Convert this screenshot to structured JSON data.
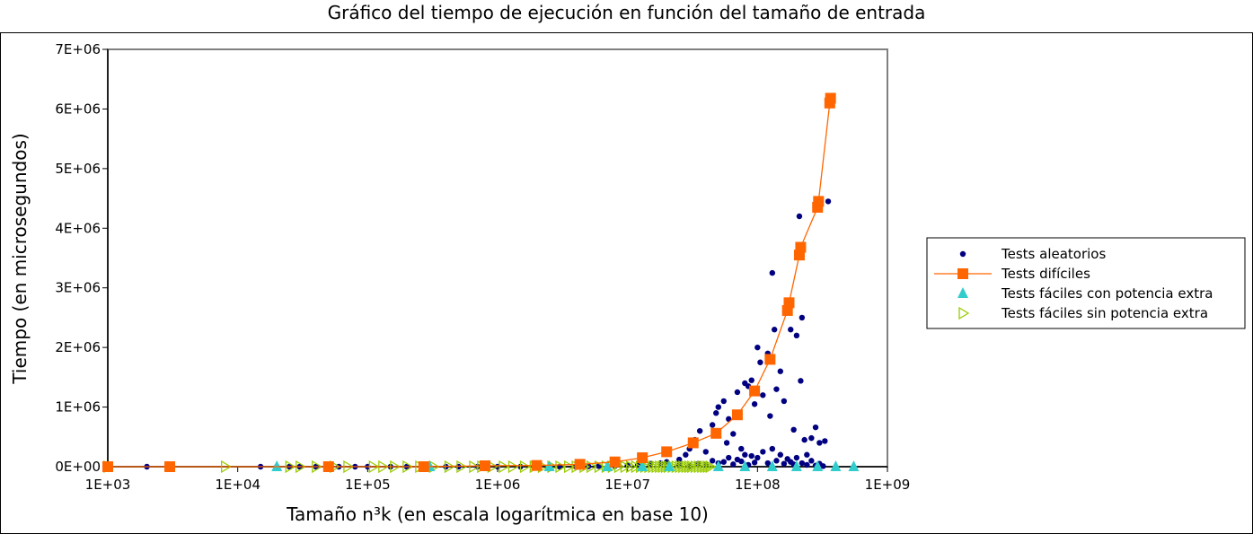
{
  "chart_data": {
    "type": "scatter",
    "title": "Gráfico del tiempo de ejecución en función del tamaño de entrada",
    "xlabel": "Tamaño n³k (en escala logarítmica en base 10)",
    "ylabel": "Tiempo (en microsegundos)",
    "x_scale": "log10",
    "xlim": [
      1000,
      1000000000
    ],
    "ylim": [
      0,
      7000000
    ],
    "x_ticks": [
      "1E+03",
      "1E+04",
      "1E+05",
      "1E+06",
      "1E+07",
      "1E+08",
      "1E+09"
    ],
    "y_ticks": [
      "0E+00",
      "1E+06",
      "2E+06",
      "3E+06",
      "4E+06",
      "5E+06",
      "6E+06",
      "7E+06"
    ],
    "grid": false,
    "legend_position": "right",
    "series": [
      {
        "name": "Tests aleatorios",
        "style": "scatter",
        "marker": "circle",
        "color": "#000080",
        "points": [
          [
            2000,
            0
          ],
          [
            15000,
            0
          ],
          [
            20000,
            0
          ],
          [
            25000,
            0
          ],
          [
            30000,
            0
          ],
          [
            40000,
            0
          ],
          [
            60000,
            0
          ],
          [
            80000,
            0
          ],
          [
            100000,
            0
          ],
          [
            150000,
            0
          ],
          [
            200000,
            0
          ],
          [
            300000,
            0
          ],
          [
            400000,
            0
          ],
          [
            500000,
            0
          ],
          [
            700000,
            0
          ],
          [
            1000000,
            0
          ],
          [
            1500000,
            0
          ],
          [
            2000000,
            0
          ],
          [
            3000000,
            0
          ],
          [
            4000000,
            0
          ],
          [
            5000000,
            5000
          ],
          [
            6000000,
            10000
          ],
          [
            8000000,
            10000
          ],
          [
            10000000,
            20000
          ],
          [
            12000000,
            30000
          ],
          [
            15000000,
            50000
          ],
          [
            18000000,
            60000
          ],
          [
            20000000,
            80000
          ],
          [
            25000000,
            120000
          ],
          [
            28000000,
            200000
          ],
          [
            30000000,
            300000
          ],
          [
            33000000,
            450000
          ],
          [
            36000000,
            600000
          ],
          [
            40000000,
            250000
          ],
          [
            45000000,
            700000
          ],
          [
            48000000,
            900000
          ],
          [
            50000000,
            1000000
          ],
          [
            55000000,
            1100000
          ],
          [
            58000000,
            400000
          ],
          [
            60000000,
            800000
          ],
          [
            65000000,
            550000
          ],
          [
            70000000,
            1250000
          ],
          [
            75000000,
            300000
          ],
          [
            80000000,
            1400000
          ],
          [
            85000000,
            1350000
          ],
          [
            90000000,
            1450000
          ],
          [
            95000000,
            1050000
          ],
          [
            100000000,
            2000000
          ],
          [
            105000000,
            1750000
          ],
          [
            110000000,
            1200000
          ],
          [
            120000000,
            1900000
          ],
          [
            125000000,
            850000
          ],
          [
            130000000,
            3250000
          ],
          [
            135000000,
            2300000
          ],
          [
            140000000,
            1300000
          ],
          [
            150000000,
            1600000
          ],
          [
            160000000,
            1100000
          ],
          [
            180000000,
            2300000
          ],
          [
            190000000,
            620000
          ],
          [
            200000000,
            2200000
          ],
          [
            210000000,
            4200000
          ],
          [
            215000000,
            1440000
          ],
          [
            220000000,
            2500000
          ],
          [
            230000000,
            450000
          ],
          [
            240000000,
            200000
          ],
          [
            260000000,
            480000
          ],
          [
            280000000,
            660000
          ],
          [
            300000000,
            400000
          ],
          [
            330000000,
            430000
          ],
          [
            350000000,
            4450000
          ],
          [
            25000000,
            20000
          ],
          [
            30000000,
            10000
          ],
          [
            35000000,
            50000
          ],
          [
            40000000,
            30000
          ],
          [
            45000000,
            100000
          ],
          [
            50000000,
            60000
          ],
          [
            55000000,
            80000
          ],
          [
            60000000,
            150000
          ],
          [
            65000000,
            40000
          ],
          [
            70000000,
            120000
          ],
          [
            75000000,
            90000
          ],
          [
            80000000,
            200000
          ],
          [
            85000000,
            30000
          ],
          [
            90000000,
            180000
          ],
          [
            95000000,
            70000
          ],
          [
            100000000,
            150000
          ],
          [
            110000000,
            250000
          ],
          [
            120000000,
            60000
          ],
          [
            130000000,
            300000
          ],
          [
            140000000,
            100000
          ],
          [
            150000000,
            200000
          ],
          [
            160000000,
            50000
          ],
          [
            170000000,
            130000
          ],
          [
            180000000,
            80000
          ],
          [
            190000000,
            40000
          ],
          [
            200000000,
            150000
          ],
          [
            220000000,
            60000
          ],
          [
            240000000,
            30000
          ],
          [
            260000000,
            100000
          ],
          [
            280000000,
            20000
          ],
          [
            300000000,
            50000
          ],
          [
            320000000,
            10000
          ]
        ]
      },
      {
        "name": "Tests difíciles",
        "style": "line+marker",
        "marker": "square",
        "color": "#ff6600",
        "points": [
          [
            1000,
            0
          ],
          [
            3000,
            0
          ],
          [
            50000,
            0
          ],
          [
            270000,
            0
          ],
          [
            800000,
            15000
          ],
          [
            2000000,
            20000
          ],
          [
            4300000,
            40000
          ],
          [
            8000000,
            80000
          ],
          [
            13000000,
            150000
          ],
          [
            20000000,
            250000
          ],
          [
            32000000,
            400000
          ],
          [
            48000000,
            560000
          ],
          [
            70000000,
            870000
          ],
          [
            95000000,
            1270000
          ],
          [
            125000000,
            1800000
          ],
          [
            170000000,
            2620000
          ],
          [
            175000000,
            2750000
          ],
          [
            210000000,
            3550000
          ],
          [
            215000000,
            3680000
          ],
          [
            290000000,
            4350000
          ],
          [
            295000000,
            4450000
          ],
          [
            360000000,
            6100000
          ],
          [
            365000000,
            6180000
          ]
        ]
      },
      {
        "name": "Tests fáciles con potencia extra",
        "style": "scatter",
        "marker": "triangle-up",
        "color": "#33cccc",
        "points": [
          [
            20000,
            0
          ],
          [
            300000,
            0
          ],
          [
            2500000,
            0
          ],
          [
            7000000,
            0
          ],
          [
            13000000,
            0
          ],
          [
            21000000,
            0
          ],
          [
            50000000,
            0
          ],
          [
            80000000,
            0
          ],
          [
            130000000,
            0
          ],
          [
            200000000,
            0
          ],
          [
            290000000,
            0
          ],
          [
            400000000,
            0
          ],
          [
            550000000,
            0
          ]
        ]
      },
      {
        "name": "Tests fáciles sin potencia extra",
        "style": "scatter",
        "marker": "triangle-right-open",
        "color": "#99cc00",
        "points": [
          [
            1000,
            0
          ],
          [
            8000,
            0
          ],
          [
            25000,
            0
          ],
          [
            30000,
            0
          ],
          [
            40000,
            0
          ],
          [
            55000,
            0
          ],
          [
            70000,
            0
          ],
          [
            110000,
            0
          ],
          [
            130000,
            0
          ],
          [
            160000,
            0
          ],
          [
            200000,
            0
          ],
          [
            250000,
            0
          ],
          [
            320000,
            0
          ],
          [
            420000,
            0
          ],
          [
            520000,
            0
          ],
          [
            650000,
            0
          ],
          [
            750000,
            0
          ],
          [
            900000,
            0
          ],
          [
            1100000,
            0
          ],
          [
            1300000,
            0
          ],
          [
            1600000,
            0
          ],
          [
            1900000,
            0
          ],
          [
            2200000,
            0
          ],
          [
            2600000,
            0
          ],
          [
            3000000,
            0
          ],
          [
            3500000,
            0
          ],
          [
            4000000,
            0
          ],
          [
            4600000,
            0
          ],
          [
            5200000,
            0
          ],
          [
            6000000,
            0
          ],
          [
            6800000,
            0
          ],
          [
            7600000,
            0
          ],
          [
            8500000,
            0
          ],
          [
            9500000,
            0
          ],
          [
            10500000,
            0
          ],
          [
            11500000,
            0
          ],
          [
            12500000,
            0
          ],
          [
            13500000,
            0
          ],
          [
            14500000,
            0
          ],
          [
            15500000,
            0
          ],
          [
            16500000,
            0
          ],
          [
            17500000,
            0
          ],
          [
            18500000,
            0
          ],
          [
            19500000,
            0
          ],
          [
            20500000,
            0
          ],
          [
            22000000,
            0
          ],
          [
            23500000,
            0
          ],
          [
            25000000,
            0
          ],
          [
            26500000,
            0
          ],
          [
            28000000,
            0
          ],
          [
            29500000,
            0
          ],
          [
            31000000,
            0
          ],
          [
            33000000,
            0
          ],
          [
            35000000,
            0
          ],
          [
            37000000,
            0
          ],
          [
            39000000,
            0
          ],
          [
            41000000,
            0
          ],
          [
            43000000,
            0
          ]
        ]
      }
    ]
  }
}
